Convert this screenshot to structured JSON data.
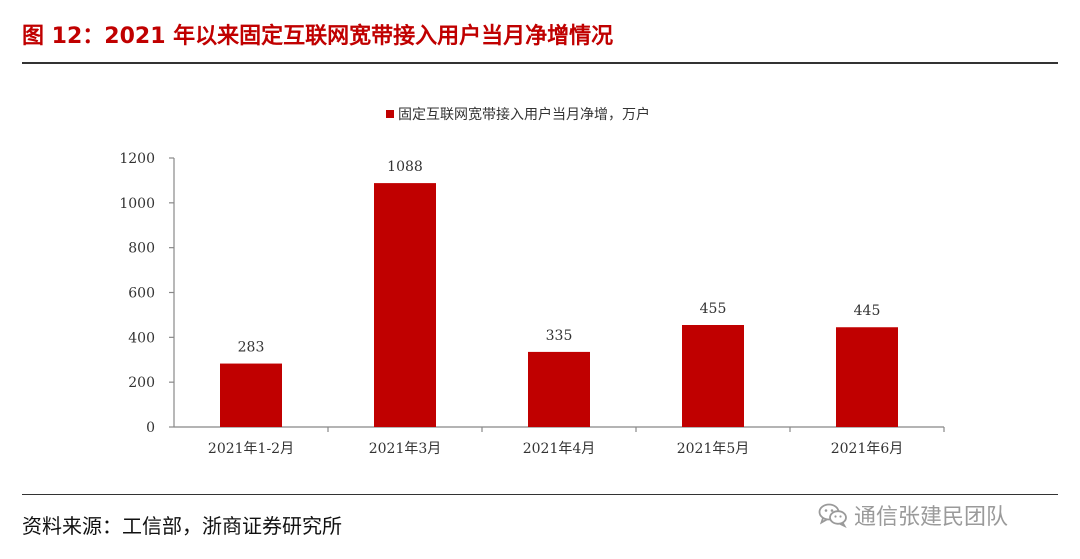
{
  "figure": {
    "title": "图 12：2021 年以来固定互联网宽带接入用户当月净增情况",
    "source": "资料来源：工信部，浙商证券研究所",
    "watermark": "通信张建民团队",
    "watermark_icon": "wechat-icon"
  },
  "colors": {
    "bar": "#c00000",
    "title": "#c00000",
    "axis": "#888888",
    "text": "#333333"
  },
  "chart_data": {
    "type": "bar",
    "categories": [
      "2021年1-2月",
      "2021年3月",
      "2021年4月",
      "2021年5月",
      "2021年6月"
    ],
    "series": [
      {
        "name": "固定互联网宽带接入用户当月净增，万户",
        "values": [
          283,
          1088,
          335,
          455,
          445
        ]
      }
    ],
    "data_labels": [
      "283",
      "1088",
      "335",
      "455",
      "445"
    ],
    "y_ticks": [
      "0",
      "200",
      "400",
      "600",
      "800",
      "1000",
      "1200"
    ],
    "ylim": [
      0,
      1200
    ],
    "legend_position": "top-center",
    "grid": false
  }
}
